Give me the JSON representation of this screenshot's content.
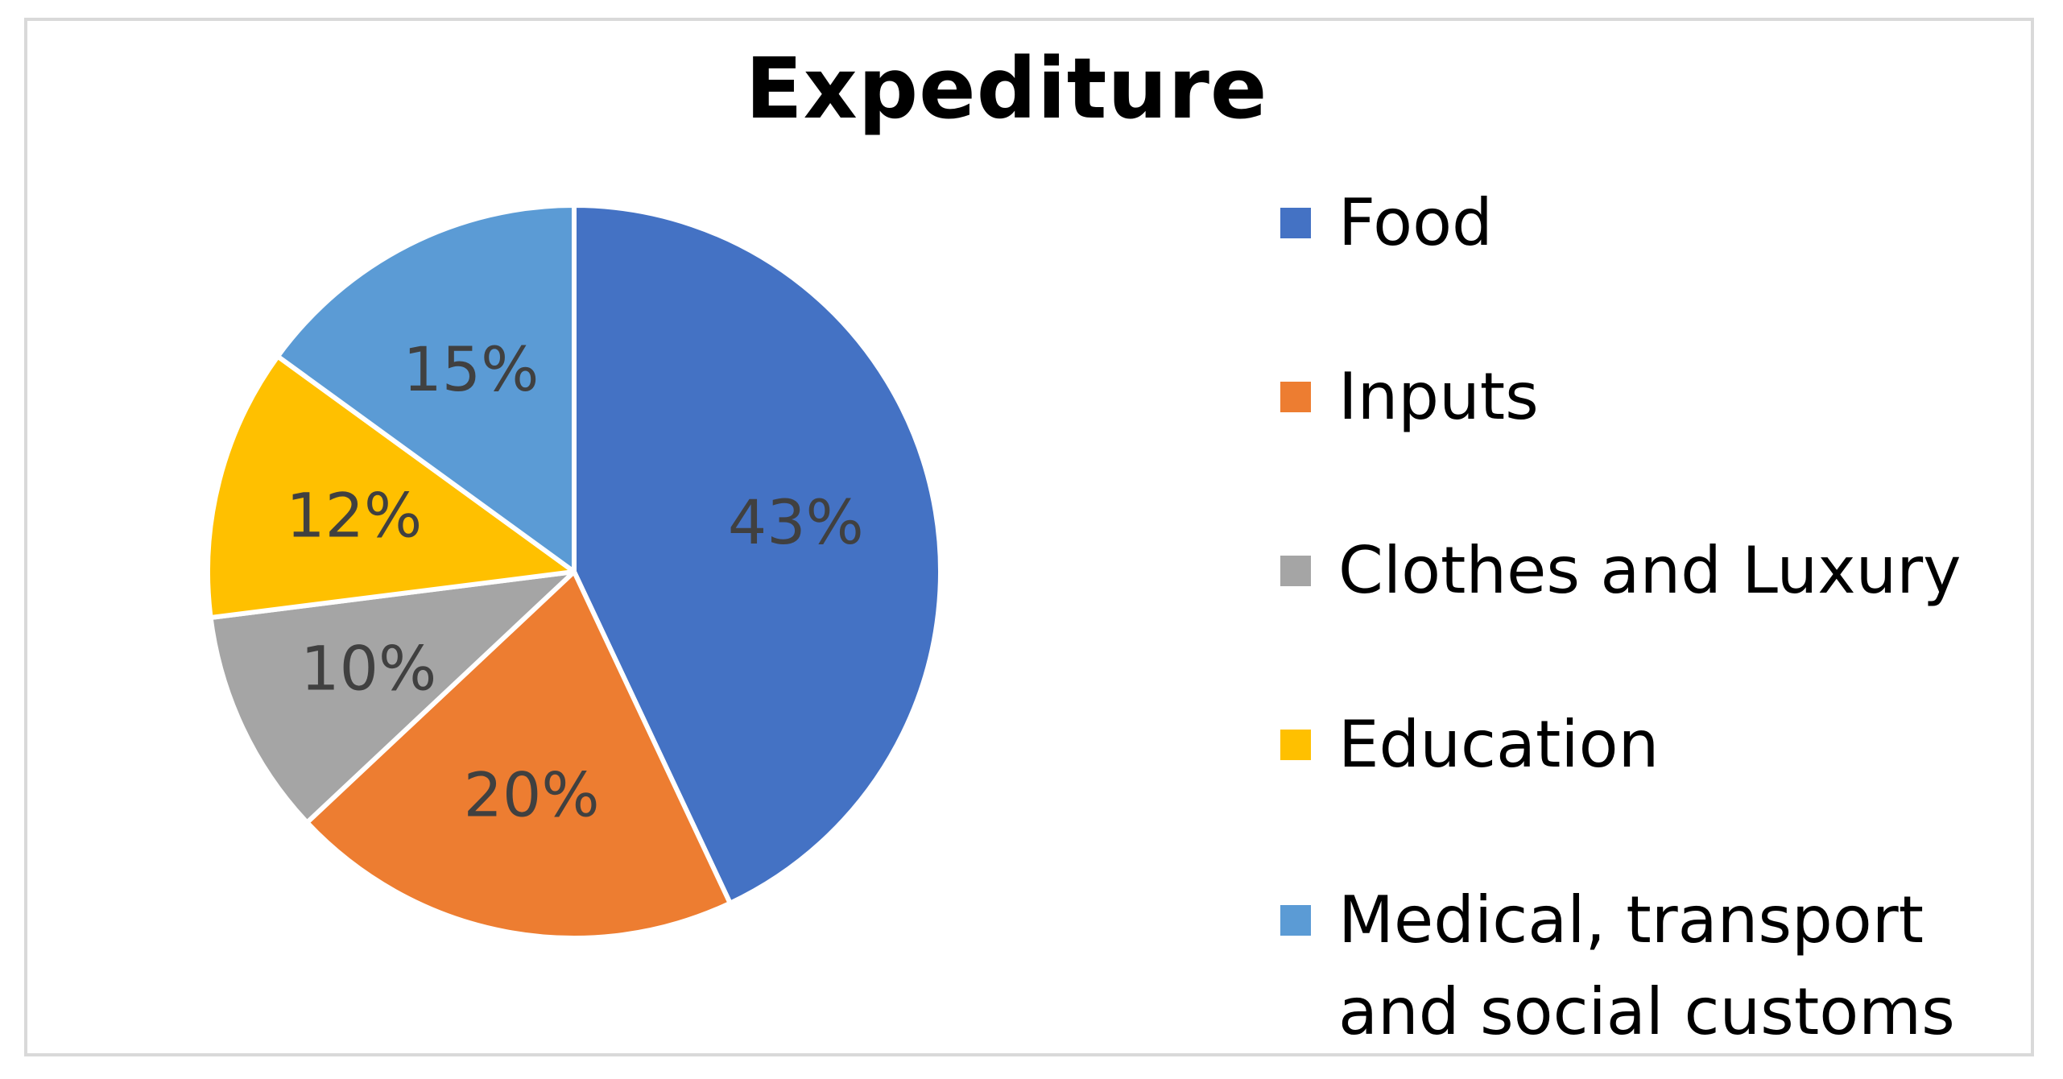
{
  "chart_data": {
    "type": "pie",
    "title": "Expediture",
    "legend_position": "right",
    "start_angle_deg": 0,
    "direction": "clockwise",
    "slices": [
      {
        "label": "Food",
        "value": 43,
        "display": "43%",
        "color": "#4472C4"
      },
      {
        "label": "Inputs",
        "value": 20,
        "display": "20%",
        "color": "#ED7D31"
      },
      {
        "label": "Clothes and Luxury",
        "value": 10,
        "display": "10%",
        "color": "#A5A5A5"
      },
      {
        "label": "Education",
        "value": 12,
        "display": "12%",
        "color": "#FFC000"
      },
      {
        "label": "Medical, transport and social customs",
        "value": 15,
        "display": "15%",
        "color": "#5B9BD5"
      }
    ]
  }
}
